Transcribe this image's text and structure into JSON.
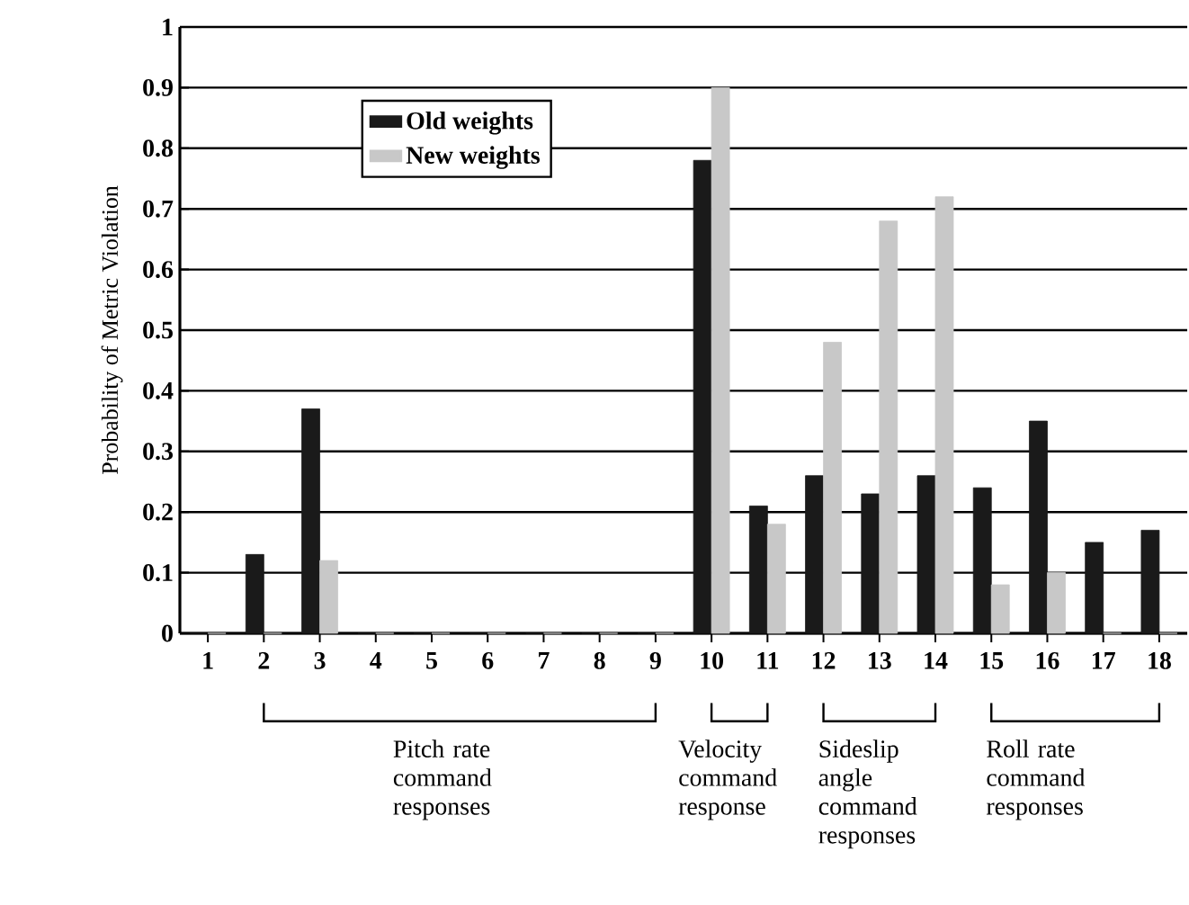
{
  "chart_data": {
    "type": "bar",
    "ylabel": "Probability of Metric Violation",
    "categories": [
      "1",
      "2",
      "3",
      "4",
      "5",
      "6",
      "7",
      "8",
      "9",
      "10",
      "11",
      "12",
      "13",
      "14",
      "15",
      "16",
      "17",
      "18"
    ],
    "series": [
      {
        "name": "Old weights",
        "color": "#1a1a1a",
        "values": [
          0,
          0.13,
          0.37,
          0,
          0,
          0,
          0,
          0,
          0,
          0.78,
          0.21,
          0.26,
          0.23,
          0.26,
          0.24,
          0.35,
          0.15,
          0.17
        ]
      },
      {
        "name": "New weights",
        "color": "#c8c8c8",
        "values": [
          0,
          0,
          0.12,
          0,
          0,
          0,
          0,
          0,
          0,
          0.9,
          0.18,
          0.48,
          0.68,
          0.72,
          0.08,
          0.1,
          0,
          0
        ]
      }
    ],
    "ylim": [
      0,
      1
    ],
    "yticks": [
      0,
      0.1,
      0.2,
      0.3,
      0.4,
      0.5,
      0.6,
      0.7,
      0.8,
      0.9,
      1
    ],
    "grid": "y",
    "legend": "top left",
    "annotations": [
      "Pitch rate command responses",
      "Velocity command response",
      "Sideslip angle command responses",
      "Roll rate command responses"
    ]
  }
}
